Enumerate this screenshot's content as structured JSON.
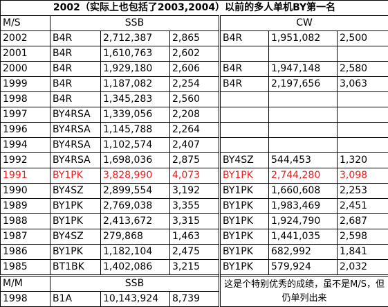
{
  "title": "2002（实际上也包括了2003,2004）以前的多人单机BY第一名",
  "header": {
    "category": "M/S",
    "ssb": "SSB",
    "cw": "CW"
  },
  "rows": [
    {
      "year": "2002",
      "ssb": [
        "B4R",
        "2,712,387",
        "2,865"
      ],
      "cw": [
        "B4R",
        "1,951,082",
        "2,500"
      ]
    },
    {
      "year": "2001",
      "ssb": [
        "B4R",
        "1,610,763",
        "2,602"
      ],
      "cw": null
    },
    {
      "year": "2000",
      "ssb": [
        "B4R",
        "1,929,180",
        "2,606"
      ],
      "cw": [
        "B4R",
        "1,947,148",
        "2,580"
      ]
    },
    {
      "year": "1999",
      "ssb": [
        "B4R",
        "1,187,082",
        "2,254"
      ],
      "cw": [
        "B4R",
        "2,197,656",
        "3,063"
      ]
    },
    {
      "year": "1998",
      "ssb": [
        "B4R",
        "1,345,283",
        "2,560"
      ],
      "cw": null
    },
    {
      "year": "1997",
      "ssb": [
        "BY4RSA",
        "1,339,056",
        "2,208"
      ],
      "cw": null
    },
    {
      "year": "1996",
      "ssb": [
        "BY4RSA",
        "1,145,788",
        "2,264"
      ],
      "cw": null
    },
    {
      "year": "1994",
      "ssb": [
        "BY4RSA",
        "1,102,574",
        "2,407"
      ],
      "cw": null
    },
    {
      "year": "1992",
      "ssb": [
        "BY4RSA",
        "1,698,036",
        "2,875"
      ],
      "cw": [
        "BY4SZ",
        "544,453",
        "1,320"
      ]
    },
    {
      "year": "1991",
      "ssb": [
        "BY1PK",
        "3,828,990",
        "4,073"
      ],
      "cw": [
        "BY1PK",
        "2,744,280",
        "3,098"
      ],
      "color": "#ee1c1c"
    },
    {
      "year": "1990",
      "ssb": [
        "BY4SZ",
        "2,899,554",
        "3,192"
      ],
      "cw": [
        "BY1PK",
        "1,660,608",
        "2,253"
      ]
    },
    {
      "year": "1989",
      "ssb": [
        "BY1PK",
        "2,769,038",
        "3,355"
      ],
      "cw": [
        "BY1PK",
        "1,983,469",
        "2,451"
      ]
    },
    {
      "year": "1988",
      "ssb": [
        "BY1PK",
        "2,413,672",
        "3,315"
      ],
      "cw": [
        "BY1PK",
        "1,924,790",
        "2,687"
      ]
    },
    {
      "year": "1987",
      "ssb": [
        "BY4SZ",
        "279,868",
        "1,463"
      ],
      "cw": [
        "BY1PK",
        "1,441,035",
        "2,598"
      ]
    },
    {
      "year": "1986",
      "ssb": [
        "BY1PK",
        "1,182,104",
        "2,475"
      ],
      "cw": [
        "BY1PK",
        "682,992",
        "1,841"
      ]
    },
    {
      "year": "1985",
      "ssb": [
        "BT1BK",
        "1,402,086",
        "3,215"
      ],
      "cw": [
        "BY1PK",
        "579,924",
        "2,032"
      ]
    }
  ],
  "mm": {
    "category": "M/M",
    "ssb": "SSB",
    "note": "这是个特别优秀的成绩，虽不是M/S，但仍单列出来",
    "row": {
      "year": "1998",
      "ssb": [
        "B1A",
        "10,143,924",
        "8,739"
      ]
    }
  }
}
